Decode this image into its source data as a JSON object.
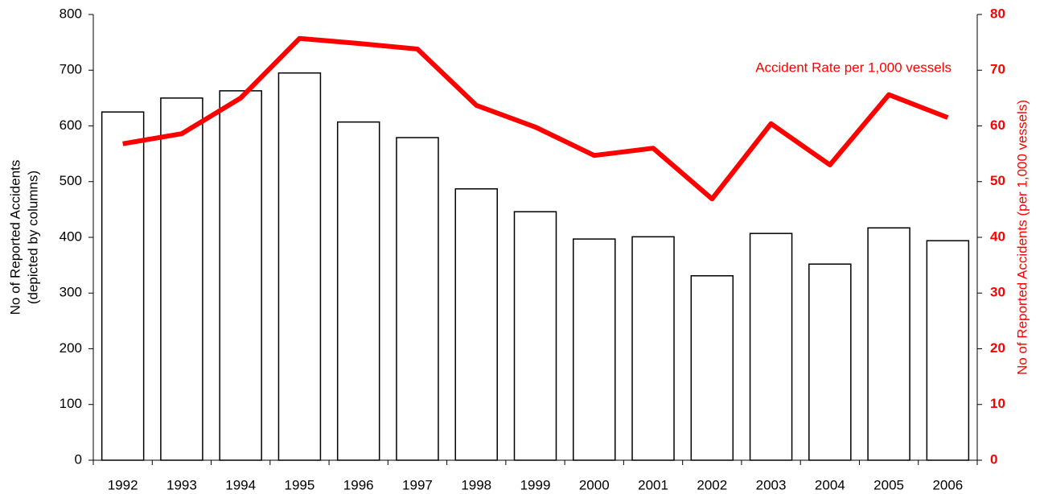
{
  "chart_data": {
    "type": "bar-line",
    "categories": [
      "1992",
      "1993",
      "1994",
      "1995",
      "1996",
      "1997",
      "1998",
      "1999",
      "2000",
      "2001",
      "2002",
      "2003",
      "2004",
      "2005",
      "2006"
    ],
    "series": [
      {
        "type": "bar",
        "color": "#ffffff",
        "edgecolor": "#000000",
        "axis": "y",
        "values": [
          625,
          650,
          663,
          695,
          607,
          579,
          487,
          446,
          397,
          401,
          331,
          407,
          352,
          417,
          394
        ]
      },
      {
        "type": "line",
        "color": "#ff0000",
        "axis": "y2",
        "values": [
          56.8,
          58.6,
          65,
          75.7,
          74.8,
          73.8,
          63.7,
          59.8,
          54.7,
          56,
          46.9,
          60.4,
          53,
          65.6,
          61.5
        ]
      }
    ],
    "annotation": "Accident Rate per 1,000 vessels",
    "ylabel": [
      "No of Reported Accidents",
      "(depicted by columns)"
    ],
    "y2label": "No of Reported Accidents (per 1,000 vessels)",
    "y2color": "#ff0000",
    "ylim": [
      0,
      800
    ],
    "yticks": [
      0,
      100,
      200,
      300,
      400,
      500,
      600,
      700,
      800
    ],
    "y2lim": [
      0,
      80
    ],
    "y2ticks": [
      0,
      10,
      20,
      30,
      40,
      50,
      60,
      70,
      80
    ],
    "grid": false
  }
}
